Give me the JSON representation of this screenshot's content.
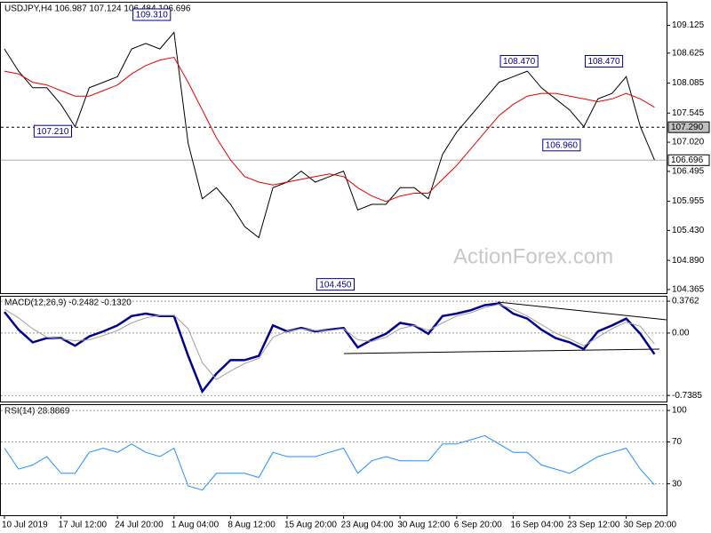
{
  "chart_data": [
    {
      "type": "line",
      "title": "USDJPY,H4  106.987 107.124 106.484 106.696",
      "ylim": [
        104.3,
        109.55
      ],
      "yticks": [
        109.125,
        108.625,
        108.085,
        107.545,
        {
          "value": 107.02,
          "label": "107.020"
        },
        106.495,
        105.955,
        {
          "value": 105.43,
          "label": "105.430"
        },
        {
          "value": 104.89,
          "label": "104.890"
        },
        104.365
      ],
      "grid": false,
      "watermark": "ActionForex.com",
      "series": [
        {
          "color": "#000000",
          "values": [
            108.7,
            108.3,
            108.0,
            108.0,
            107.7,
            107.3,
            108.0,
            108.1,
            108.2,
            108.7,
            108.8,
            108.7,
            109.0,
            107.0,
            106.0,
            106.2,
            105.9,
            105.5,
            105.3,
            106.2,
            106.3,
            106.5,
            106.3,
            106.4,
            106.5,
            105.8,
            105.9,
            105.9,
            106.2,
            106.2,
            106.0,
            106.8,
            107.2,
            107.5,
            107.8,
            108.1,
            108.2,
            108.3,
            108.0,
            107.8,
            107.6,
            107.3,
            107.8,
            107.9,
            108.2,
            107.3,
            106.7
          ]
        },
        {
          "color": "#e00000",
          "values": [
            108.3,
            108.25,
            108.1,
            108.05,
            107.95,
            107.85,
            107.85,
            107.95,
            108.05,
            108.25,
            108.4,
            108.5,
            108.55,
            108.1,
            107.6,
            107.1,
            106.7,
            106.4,
            106.3,
            106.25,
            106.3,
            106.35,
            106.4,
            106.45,
            106.4,
            106.2,
            106.05,
            105.95,
            106.05,
            106.1,
            106.1,
            106.35,
            106.6,
            106.9,
            107.2,
            107.5,
            107.7,
            107.85,
            107.9,
            107.9,
            107.85,
            107.8,
            107.75,
            107.8,
            107.9,
            107.8,
            107.65
          ]
        }
      ],
      "annotations": [
        {
          "x": 12,
          "value": 109.31,
          "label": "109.310"
        },
        {
          "x": 5,
          "value": 107.21,
          "label": "107.210"
        },
        {
          "x": 25,
          "value": 104.45,
          "label": "104.450"
        },
        {
          "x": 38,
          "value": 108.47,
          "label": "108.470"
        },
        {
          "x": 44,
          "value": 108.47,
          "label": "108.470"
        },
        {
          "x": 41,
          "value": 106.96,
          "label": "106.960"
        }
      ],
      "hlines": [
        {
          "value": 107.29,
          "label": "107.290",
          "style": "dashed"
        },
        {
          "value": 106.696,
          "label": "106.696",
          "style": "solid"
        }
      ]
    },
    {
      "type": "line",
      "title": "MACD(12,26,9) -0.2482 -0.1320",
      "ylim": [
        -0.81,
        0.44
      ],
      "yticks": [
        0.3762,
        {
          "value": 0,
          "label": "0.00"
        },
        -0.7385
      ],
      "grid": true,
      "series": [
        {
          "color": "#00008b",
          "values": [
            0.25,
            0.04,
            -0.11,
            -0.06,
            -0.06,
            -0.15,
            -0.04,
            0.02,
            0.09,
            0.2,
            0.23,
            0.2,
            0.2,
            -0.27,
            -0.69,
            -0.48,
            -0.32,
            -0.32,
            -0.27,
            0.09,
            0.02,
            0.06,
            0.02,
            0.04,
            0.06,
            -0.17,
            -0.08,
            -0.01,
            0.12,
            0.09,
            -0.01,
            0.2,
            0.23,
            0.27,
            0.33,
            0.35,
            0.23,
            0.17,
            0.04,
            -0.06,
            -0.11,
            -0.19,
            0.02,
            0.09,
            0.17,
            -0.01,
            -0.25
          ]
        },
        {
          "color": "#a0a0a0",
          "values": [
            0.28,
            0.18,
            0.05,
            -0.05,
            -0.07,
            -0.09,
            -0.08,
            -0.03,
            0.03,
            0.12,
            0.18,
            0.21,
            0.21,
            0.05,
            -0.35,
            -0.55,
            -0.45,
            -0.36,
            -0.3,
            -0.05,
            0.02,
            0.05,
            0.03,
            0.03,
            0.05,
            -0.08,
            -0.1,
            -0.05,
            0.05,
            0.09,
            0.03,
            0.12,
            0.2,
            0.24,
            0.3,
            0.34,
            0.28,
            0.2,
            0.1,
            0.0,
            -0.07,
            -0.15,
            -0.05,
            0.05,
            0.13,
            0.08,
            -0.13
          ]
        }
      ]
    },
    {
      "type": "line",
      "title": "RSI(14) 28.8869",
      "ylim": [
        0,
        106
      ],
      "yticks": [
        100,
        70,
        30
      ],
      "grid": true,
      "categories": [
        "10 Jul 2019",
        null,
        null,
        null,
        "17 Jul 12:00",
        null,
        null,
        null,
        "24 Jul 20:00",
        null,
        null,
        null,
        "1 Aug 04:00",
        null,
        null,
        null,
        "8 Aug 12:00",
        null,
        null,
        null,
        "15 Aug 20:00",
        null,
        null,
        null,
        "23 Aug 04:00",
        null,
        null,
        null,
        "30 Aug 12:00",
        null,
        null,
        null,
        "6 Sep 20:00",
        null,
        null,
        null,
        "16 Sep 04:00",
        null,
        null,
        null,
        "23 Sep 12:00",
        null,
        null,
        null,
        "30 Sep 20:00",
        null,
        null
      ],
      "series": [
        {
          "color": "#1e90ff",
          "values": [
            64,
            44,
            48,
            56,
            40,
            40,
            60,
            64,
            60,
            68,
            60,
            56,
            64,
            28,
            24,
            40,
            40,
            40,
            36,
            60,
            56,
            56,
            56,
            60,
            64,
            40,
            52,
            56,
            52,
            52,
            52,
            68,
            68,
            72,
            76,
            68,
            60,
            60,
            48,
            44,
            40,
            48,
            56,
            60,
            64,
            44,
            29
          ]
        }
      ]
    }
  ]
}
